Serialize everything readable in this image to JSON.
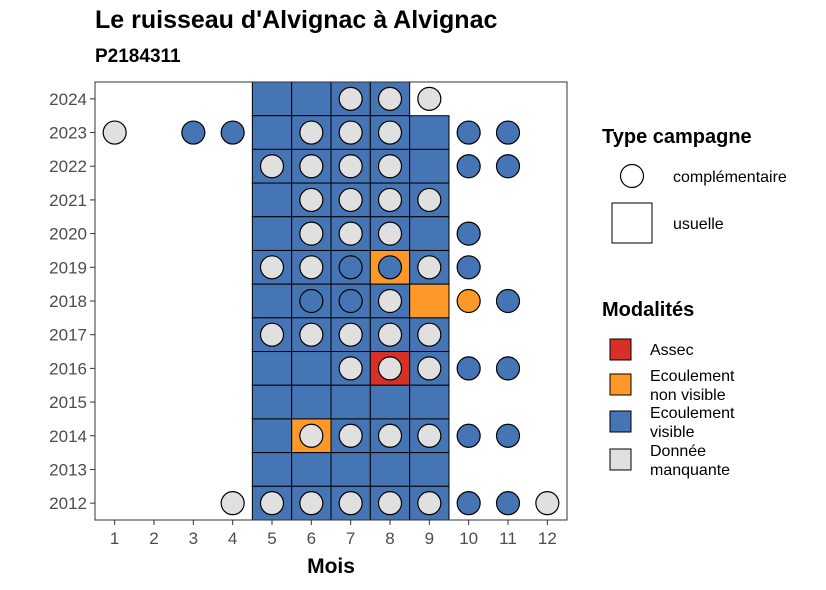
{
  "chart_data": {
    "type": "heatmap",
    "title": "Le ruisseau d'Alvignac à Alvignac",
    "subtitle": "P2184311",
    "xlabel": "Mois",
    "ylabel": "",
    "x_ticks": [
      "1",
      "2",
      "3",
      "4",
      "5",
      "6",
      "7",
      "8",
      "9",
      "10",
      "11",
      "12"
    ],
    "y_ticks": [
      "2012",
      "2013",
      "2014",
      "2015",
      "2016",
      "2017",
      "2018",
      "2019",
      "2020",
      "2021",
      "2022",
      "2023",
      "2024"
    ],
    "xlim": [
      0.5,
      12.5
    ],
    "ylim": [
      2011.5,
      2024.5
    ],
    "grid": false,
    "legend_position": "right",
    "legend_type": {
      "title": "Type campagne",
      "items": [
        {
          "key": "complementaire",
          "label": "complémentaire",
          "shape": "circle"
        },
        {
          "key": "usuelle",
          "label": "usuelle",
          "shape": "square"
        }
      ]
    },
    "legend_modalites": {
      "title": "Modalités",
      "items": [
        {
          "key": "assec",
          "label_lines": [
            "Assec"
          ],
          "color": "#d73027"
        },
        {
          "key": "nonvisible",
          "label_lines": [
            "Ecoulement",
            "non visible"
          ],
          "color": "#fe9929"
        },
        {
          "key": "visible",
          "label_lines": [
            "Ecoulement",
            "visible"
          ],
          "color": "#4575b4"
        },
        {
          "key": "manquante",
          "label_lines": [
            "Donnée",
            "manquante"
          ],
          "color": "#e0e0e0"
        }
      ]
    },
    "usuelle": [
      {
        "year": 2024,
        "month": 5,
        "modalite": "visible"
      },
      {
        "year": 2024,
        "month": 6,
        "modalite": "visible"
      },
      {
        "year": 2024,
        "month": 7,
        "modalite": "visible"
      },
      {
        "year": 2024,
        "month": 8,
        "modalite": "visible"
      },
      {
        "year": 2023,
        "month": 5,
        "modalite": "visible"
      },
      {
        "year": 2023,
        "month": 6,
        "modalite": "visible"
      },
      {
        "year": 2023,
        "month": 7,
        "modalite": "visible"
      },
      {
        "year": 2023,
        "month": 8,
        "modalite": "visible"
      },
      {
        "year": 2023,
        "month": 9,
        "modalite": "visible"
      },
      {
        "year": 2022,
        "month": 5,
        "modalite": "visible"
      },
      {
        "year": 2022,
        "month": 6,
        "modalite": "visible"
      },
      {
        "year": 2022,
        "month": 7,
        "modalite": "visible"
      },
      {
        "year": 2022,
        "month": 8,
        "modalite": "visible"
      },
      {
        "year": 2022,
        "month": 9,
        "modalite": "visible"
      },
      {
        "year": 2021,
        "month": 5,
        "modalite": "visible"
      },
      {
        "year": 2021,
        "month": 6,
        "modalite": "visible"
      },
      {
        "year": 2021,
        "month": 7,
        "modalite": "visible"
      },
      {
        "year": 2021,
        "month": 8,
        "modalite": "visible"
      },
      {
        "year": 2021,
        "month": 9,
        "modalite": "visible"
      },
      {
        "year": 2020,
        "month": 5,
        "modalite": "visible"
      },
      {
        "year": 2020,
        "month": 6,
        "modalite": "visible"
      },
      {
        "year": 2020,
        "month": 7,
        "modalite": "visible"
      },
      {
        "year": 2020,
        "month": 8,
        "modalite": "visible"
      },
      {
        "year": 2020,
        "month": 9,
        "modalite": "visible"
      },
      {
        "year": 2019,
        "month": 5,
        "modalite": "visible"
      },
      {
        "year": 2019,
        "month": 6,
        "modalite": "visible"
      },
      {
        "year": 2019,
        "month": 7,
        "modalite": "visible"
      },
      {
        "year": 2019,
        "month": 8,
        "modalite": "nonvisible"
      },
      {
        "year": 2019,
        "month": 9,
        "modalite": "visible"
      },
      {
        "year": 2018,
        "month": 5,
        "modalite": "visible"
      },
      {
        "year": 2018,
        "month": 6,
        "modalite": "visible"
      },
      {
        "year": 2018,
        "month": 7,
        "modalite": "visible"
      },
      {
        "year": 2018,
        "month": 8,
        "modalite": "visible"
      },
      {
        "year": 2018,
        "month": 9,
        "modalite": "nonvisible"
      },
      {
        "year": 2017,
        "month": 5,
        "modalite": "visible"
      },
      {
        "year": 2017,
        "month": 6,
        "modalite": "visible"
      },
      {
        "year": 2017,
        "month": 7,
        "modalite": "visible"
      },
      {
        "year": 2017,
        "month": 8,
        "modalite": "visible"
      },
      {
        "year": 2017,
        "month": 9,
        "modalite": "visible"
      },
      {
        "year": 2016,
        "month": 5,
        "modalite": "visible"
      },
      {
        "year": 2016,
        "month": 6,
        "modalite": "visible"
      },
      {
        "year": 2016,
        "month": 7,
        "modalite": "visible"
      },
      {
        "year": 2016,
        "month": 8,
        "modalite": "assec"
      },
      {
        "year": 2016,
        "month": 9,
        "modalite": "visible"
      },
      {
        "year": 2015,
        "month": 5,
        "modalite": "visible"
      },
      {
        "year": 2015,
        "month": 6,
        "modalite": "visible"
      },
      {
        "year": 2015,
        "month": 7,
        "modalite": "visible"
      },
      {
        "year": 2015,
        "month": 8,
        "modalite": "visible"
      },
      {
        "year": 2015,
        "month": 9,
        "modalite": "visible"
      },
      {
        "year": 2014,
        "month": 5,
        "modalite": "visible"
      },
      {
        "year": 2014,
        "month": 6,
        "modalite": "nonvisible"
      },
      {
        "year": 2014,
        "month": 7,
        "modalite": "visible"
      },
      {
        "year": 2014,
        "month": 8,
        "modalite": "visible"
      },
      {
        "year": 2014,
        "month": 9,
        "modalite": "visible"
      },
      {
        "year": 2013,
        "month": 5,
        "modalite": "visible"
      },
      {
        "year": 2013,
        "month": 6,
        "modalite": "visible"
      },
      {
        "year": 2013,
        "month": 7,
        "modalite": "visible"
      },
      {
        "year": 2013,
        "month": 8,
        "modalite": "visible"
      },
      {
        "year": 2013,
        "month": 9,
        "modalite": "visible"
      },
      {
        "year": 2012,
        "month": 5,
        "modalite": "visible"
      },
      {
        "year": 2012,
        "month": 6,
        "modalite": "visible"
      },
      {
        "year": 2012,
        "month": 7,
        "modalite": "visible"
      },
      {
        "year": 2012,
        "month": 8,
        "modalite": "visible"
      },
      {
        "year": 2012,
        "month": 9,
        "modalite": "visible"
      }
    ],
    "complementaire": [
      {
        "year": 2024,
        "month": 7,
        "modalite": "manquante"
      },
      {
        "year": 2024,
        "month": 8,
        "modalite": "manquante"
      },
      {
        "year": 2024,
        "month": 9,
        "modalite": "manquante"
      },
      {
        "year": 2023,
        "month": 1,
        "modalite": "manquante"
      },
      {
        "year": 2023,
        "month": 3,
        "modalite": "visible"
      },
      {
        "year": 2023,
        "month": 4,
        "modalite": "visible"
      },
      {
        "year": 2023,
        "month": 6,
        "modalite": "manquante"
      },
      {
        "year": 2023,
        "month": 7,
        "modalite": "manquante"
      },
      {
        "year": 2023,
        "month": 8,
        "modalite": "manquante"
      },
      {
        "year": 2023,
        "month": 10,
        "modalite": "visible"
      },
      {
        "year": 2023,
        "month": 11,
        "modalite": "visible"
      },
      {
        "year": 2022,
        "month": 5,
        "modalite": "manquante"
      },
      {
        "year": 2022,
        "month": 6,
        "modalite": "manquante"
      },
      {
        "year": 2022,
        "month": 7,
        "modalite": "manquante"
      },
      {
        "year": 2022,
        "month": 8,
        "modalite": "manquante"
      },
      {
        "year": 2022,
        "month": 10,
        "modalite": "visible"
      },
      {
        "year": 2022,
        "month": 11,
        "modalite": "visible"
      },
      {
        "year": 2021,
        "month": 6,
        "modalite": "manquante"
      },
      {
        "year": 2021,
        "month": 7,
        "modalite": "manquante"
      },
      {
        "year": 2021,
        "month": 8,
        "modalite": "manquante"
      },
      {
        "year": 2021,
        "month": 9,
        "modalite": "manquante"
      },
      {
        "year": 2020,
        "month": 6,
        "modalite": "manquante"
      },
      {
        "year": 2020,
        "month": 7,
        "modalite": "manquante"
      },
      {
        "year": 2020,
        "month": 8,
        "modalite": "manquante"
      },
      {
        "year": 2020,
        "month": 10,
        "modalite": "visible"
      },
      {
        "year": 2019,
        "month": 5,
        "modalite": "manquante"
      },
      {
        "year": 2019,
        "month": 6,
        "modalite": "manquante"
      },
      {
        "year": 2019,
        "month": 7,
        "modalite": "visible"
      },
      {
        "year": 2019,
        "month": 8,
        "modalite": "visible"
      },
      {
        "year": 2019,
        "month": 9,
        "modalite": "manquante"
      },
      {
        "year": 2019,
        "month": 10,
        "modalite": "visible"
      },
      {
        "year": 2018,
        "month": 6,
        "modalite": "visible"
      },
      {
        "year": 2018,
        "month": 7,
        "modalite": "visible"
      },
      {
        "year": 2018,
        "month": 8,
        "modalite": "manquante"
      },
      {
        "year": 2018,
        "month": 10,
        "modalite": "nonvisible"
      },
      {
        "year": 2018,
        "month": 11,
        "modalite": "visible"
      },
      {
        "year": 2017,
        "month": 5,
        "modalite": "manquante"
      },
      {
        "year": 2017,
        "month": 6,
        "modalite": "manquante"
      },
      {
        "year": 2017,
        "month": 7,
        "modalite": "manquante"
      },
      {
        "year": 2017,
        "month": 8,
        "modalite": "manquante"
      },
      {
        "year": 2017,
        "month": 9,
        "modalite": "manquante"
      },
      {
        "year": 2016,
        "month": 7,
        "modalite": "manquante"
      },
      {
        "year": 2016,
        "month": 8,
        "modalite": "manquante"
      },
      {
        "year": 2016,
        "month": 9,
        "modalite": "manquante"
      },
      {
        "year": 2016,
        "month": 10,
        "modalite": "visible"
      },
      {
        "year": 2016,
        "month": 11,
        "modalite": "visible"
      },
      {
        "year": 2014,
        "month": 6,
        "modalite": "manquante"
      },
      {
        "year": 2014,
        "month": 7,
        "modalite": "manquante"
      },
      {
        "year": 2014,
        "month": 8,
        "modalite": "manquante"
      },
      {
        "year": 2014,
        "month": 9,
        "modalite": "manquante"
      },
      {
        "year": 2014,
        "month": 10,
        "modalite": "visible"
      },
      {
        "year": 2014,
        "month": 11,
        "modalite": "visible"
      },
      {
        "year": 2012,
        "month": 4,
        "modalite": "manquante"
      },
      {
        "year": 2012,
        "month": 5,
        "modalite": "manquante"
      },
      {
        "year": 2012,
        "month": 6,
        "modalite": "manquante"
      },
      {
        "year": 2012,
        "month": 7,
        "modalite": "manquante"
      },
      {
        "year": 2012,
        "month": 8,
        "modalite": "manquante"
      },
      {
        "year": 2012,
        "month": 9,
        "modalite": "manquante"
      },
      {
        "year": 2012,
        "month": 10,
        "modalite": "visible"
      },
      {
        "year": 2012,
        "month": 11,
        "modalite": "visible"
      },
      {
        "year": 2012,
        "month": 12,
        "modalite": "manquante"
      }
    ]
  }
}
